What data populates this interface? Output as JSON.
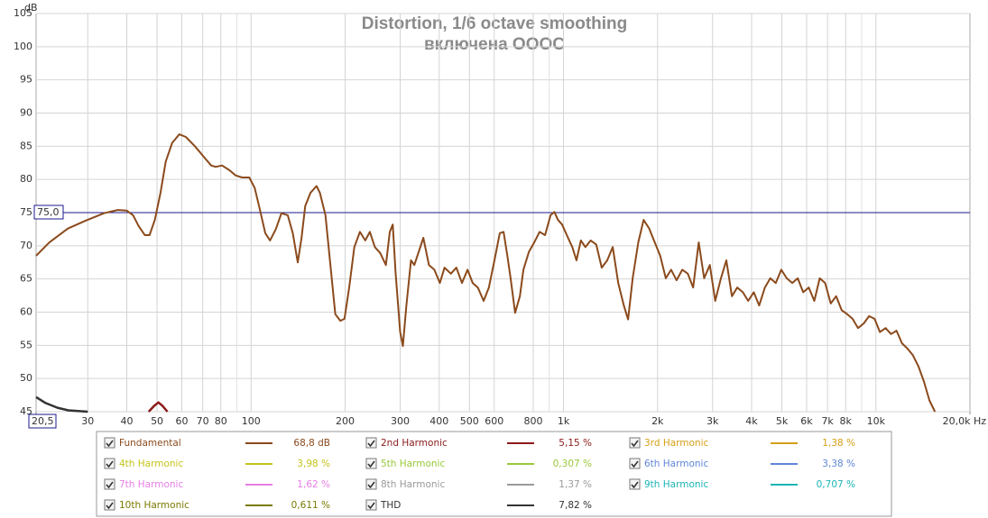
{
  "chart_data": {
    "type": "line",
    "title": "Distortion, 1/6 octave smoothing",
    "subtitle": "включена ОООС",
    "y_label": "dB",
    "log_x": true,
    "grid": true,
    "xlim": [
      20.5,
      20000
    ],
    "ylim": [
      45,
      105
    ],
    "yticks": [
      45,
      50,
      55,
      60,
      65,
      70,
      75,
      80,
      85,
      90,
      95,
      100,
      105
    ],
    "xticks": [
      {
        "value": 20.5,
        "label": "20,5"
      },
      30,
      40,
      50,
      60,
      70,
      80,
      100,
      200,
      300,
      400,
      500,
      600,
      800,
      {
        "value": 1000,
        "label": "1k"
      },
      {
        "value": 2000,
        "label": "2k"
      },
      {
        "value": 3000,
        "label": "3k"
      },
      {
        "value": 4000,
        "label": "4k"
      },
      {
        "value": 5000,
        "label": "5k"
      },
      {
        "value": 6000,
        "label": "6k"
      },
      {
        "value": 7000,
        "label": "7k"
      },
      {
        "value": 8000,
        "label": "8k"
      },
      {
        "value": 10000,
        "label": "10k"
      },
      {
        "value": 20000,
        "label": "20,0k Hz"
      }
    ],
    "xminor_ticks": [
      90,
      900,
      9000
    ],
    "cursor": {
      "value": 75,
      "label": "75,0"
    },
    "series": [
      {
        "name": "Fundamental",
        "color": "#8b4a1c",
        "reading": "68,8 dB",
        "x": [
          20.5,
          22.6,
          25.9,
          29.6,
          33.8,
          37.4,
          40,
          41.9,
          43.6,
          45.7,
          47.3,
          49.2,
          51.3,
          53.3,
          55.9,
          58.9,
          61.8,
          66.1,
          70.6,
          74.5,
          77,
          80.7,
          85.2,
          89.2,
          93.5,
          98.7,
          102.7,
          106.9,
          111,
          115,
          120,
          125,
          131,
          136,
          141,
          145,
          149,
          155,
          162,
          166,
          173,
          180,
          186,
          193,
          199,
          206,
          214,
          223,
          232,
          240,
          249,
          259,
          270,
          278,
          284,
          290,
          300,
          306,
          314,
          325,
          333,
          343,
          356,
          371,
          386,
          402,
          416,
          436,
          454,
          473,
          493,
          512,
          532,
          555,
          577,
          601,
          625,
          643,
          661,
          677,
          700,
          725,
          744,
          775,
          806,
          838,
          873,
          909,
          935,
          960,
          990,
          1025,
          1067,
          1100,
          1137,
          1175,
          1222,
          1273,
          1325,
          1380,
          1437,
          1497,
          1560,
          1610,
          1665,
          1735,
          1805,
          1880,
          1960,
          2040,
          2125,
          2210,
          2300,
          2400,
          2500,
          2600,
          2710,
          2820,
          2940,
          3060,
          3190,
          3320,
          3460,
          3600,
          3750,
          3900,
          4065,
          4230,
          4410,
          4590,
          4780,
          4980,
          5180,
          5400,
          5620,
          5850,
          6100,
          6350,
          6610,
          6880,
          7170,
          7460,
          7770,
          8090,
          8420,
          8770,
          9140,
          9510,
          9900,
          10300,
          10740,
          11180,
          11640,
          12120,
          12620,
          13140,
          13690,
          14260,
          14840,
          15450
        ],
        "values": [
          68.5,
          70.5,
          72.6,
          73.8,
          74.9,
          75.4,
          75.3,
          74.6,
          73,
          71.6,
          71.6,
          73.9,
          78,
          82.7,
          85.5,
          86.8,
          86.4,
          85,
          83.4,
          82.1,
          81.9,
          82.1,
          81.4,
          80.6,
          80.3,
          80.3,
          78.7,
          75.3,
          71.9,
          70.8,
          72.5,
          74.9,
          74.6,
          71.9,
          67.5,
          71.2,
          76,
          78,
          79,
          78,
          74.6,
          66.4,
          59.7,
          58.7,
          59,
          63.7,
          69.8,
          72.1,
          70.8,
          72.1,
          69.8,
          68.9,
          67.1,
          72.1,
          73.2,
          66,
          57,
          54.9,
          61,
          67.8,
          67.1,
          68.9,
          71.2,
          67.1,
          66.4,
          64.4,
          66.7,
          65.8,
          66.7,
          64.4,
          66.4,
          64.4,
          63.7,
          61.7,
          63.7,
          67.8,
          71.9,
          72.1,
          68.5,
          65.1,
          59.9,
          62.4,
          66.4,
          69.1,
          70.5,
          72.1,
          71.6,
          74.6,
          75.1,
          73.9,
          73.2,
          71.6,
          69.8,
          67.8,
          70.8,
          69.8,
          70.8,
          70.2,
          66.7,
          67.8,
          69.8,
          64.4,
          61,
          58.9,
          65.1,
          70.5,
          73.9,
          72.6,
          70.5,
          68.5,
          65.1,
          66.4,
          64.8,
          66.4,
          65.8,
          63.7,
          70.5,
          65.1,
          67.1,
          61.7,
          65.1,
          67.8,
          62.4,
          63.7,
          63,
          61.7,
          63,
          61,
          63.7,
          65.1,
          64.4,
          66.4,
          65.1,
          64.4,
          65.1,
          63,
          63.7,
          61.7,
          65.1,
          64.4,
          61.3,
          62.4,
          60.3,
          59.7,
          59,
          57.6,
          58.3,
          59.4,
          59,
          57,
          57.6,
          56.7,
          57.2,
          55.3,
          54.5,
          53.5,
          51.8,
          49.5,
          46.7,
          45
        ]
      },
      {
        "name": "2nd Harmonic",
        "color": "#8b1a1a",
        "reading": "5,15 %",
        "x": [
          47,
          49,
          50.5,
          52,
          54
        ],
        "values": [
          45,
          45.9,
          46.4,
          45.9,
          45
        ]
      },
      {
        "name": "3rd Harmonic",
        "color": "#d4a017",
        "reading": "1,38 %"
      },
      {
        "name": "4th Harmonic",
        "color": "#c4c41c",
        "reading": "3,98 %"
      },
      {
        "name": "5th Harmonic",
        "color": "#99c83a",
        "reading": "0,307 %"
      },
      {
        "name": "6th Harmonic",
        "color": "#5f86d8",
        "reading": "3,38 %"
      },
      {
        "name": "7th Harmonic",
        "color": "#e77ee7",
        "reading": "1,62 %"
      },
      {
        "name": "8th Harmonic",
        "color": "#9a9a9a",
        "reading": "1,37 %"
      },
      {
        "name": "9th Harmonic",
        "color": "#1cb4b4",
        "reading": "0,707 %"
      },
      {
        "name": "10th Harmonic",
        "color": "#7a7a00",
        "reading": "0,611 %"
      },
      {
        "name": "THD",
        "color": "#333333",
        "reading": "7,82 %",
        "x": [
          20.5,
          22,
          24,
          26,
          30
        ],
        "values": [
          47.2,
          46.3,
          45.6,
          45.2,
          45
        ]
      }
    ]
  }
}
